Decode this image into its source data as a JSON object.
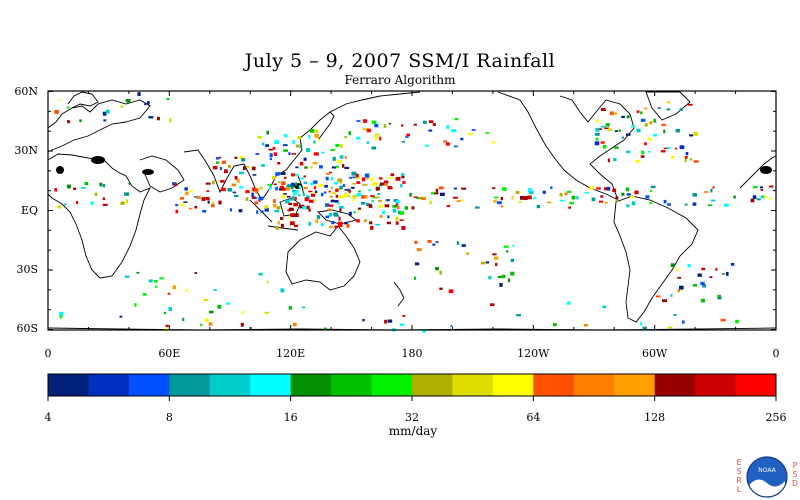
{
  "title": "July 5 – 9, 2007 SSM/I Rainfall",
  "subtitle": "Ferraro Algorithm",
  "map": {
    "lat_labels": [
      "60N",
      "30N",
      "EQ",
      "30S",
      "60S"
    ],
    "lat_values": [
      60,
      30,
      0,
      -30,
      -60
    ],
    "lon_labels": [
      "0",
      "60E",
      "120E",
      "180",
      "120W",
      "60W",
      "0"
    ],
    "lon_values": [
      0,
      60,
      120,
      180,
      240,
      300,
      360
    ]
  },
  "colorbar": {
    "labels": [
      "4",
      "8",
      "16",
      "32",
      "64",
      "128",
      "256"
    ],
    "colors": [
      "#00207a",
      "#0030c0",
      "#0050ff",
      "#009999",
      "#00cccc",
      "#00ffff",
      "#009000",
      "#00c000",
      "#00f000",
      "#b0b000",
      "#dddd00",
      "#ffff00",
      "#ff5000",
      "#ff8000",
      "#ffa000",
      "#990000",
      "#cc0000",
      "#ff0000"
    ],
    "units": "mm/day"
  },
  "logo": {
    "left_text": "ESRL",
    "right_text": "PSD",
    "center_text": "NOAA"
  }
}
